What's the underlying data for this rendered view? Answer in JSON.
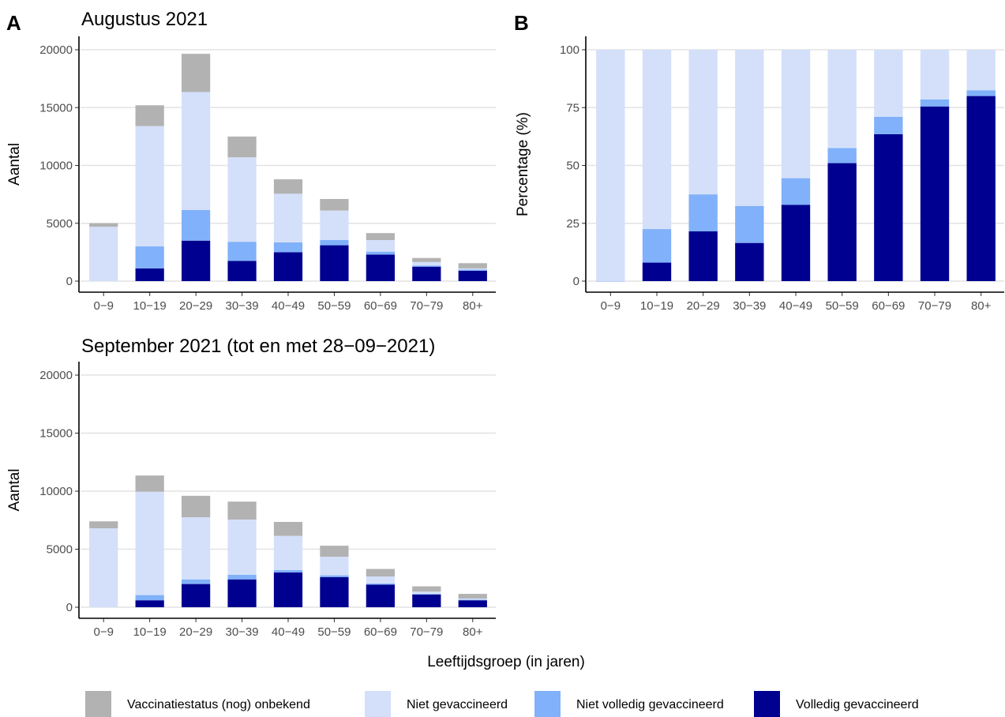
{
  "shared": {
    "xlabel": "Leeftijdsgroep (in jaren)",
    "categories": [
      "0−9",
      "10−19",
      "20−29",
      "30−39",
      "40−49",
      "50−59",
      "60−69",
      "70−79",
      "80+"
    ]
  },
  "legend": [
    {
      "key": "onbekend",
      "label": "Vaccinatiestatus (nog) onbekend",
      "color": "#b2b2b2"
    },
    {
      "key": "niet",
      "label": "Niet gevaccineerd",
      "color": "#d4e0fa"
    },
    {
      "key": "nietvolledig",
      "label": "Niet volledig gevaccineerd",
      "color": "#80b1fa"
    },
    {
      "key": "volledig",
      "label": "Volledig gevaccineerd",
      "color": "#000090"
    }
  ],
  "chart_data": [
    {
      "tag": "A",
      "type": "bar",
      "stacked": true,
      "title": "Augustus 2021",
      "ylabel": "Aantal",
      "ylim": [
        0,
        20000
      ],
      "yticks": [
        "0",
        "5000",
        "10000",
        "15000",
        "20000"
      ],
      "categories": [
        "0−9",
        "10−19",
        "20−29",
        "30−39",
        "40−49",
        "50−59",
        "60−69",
        "70−79",
        "80+"
      ],
      "series": [
        {
          "name": "Volledig gevaccineerd",
          "values": [
            0,
            1100,
            3500,
            1750,
            2500,
            3100,
            2300,
            1250,
            900
          ]
        },
        {
          "name": "Niet volledig gevaccineerd",
          "values": [
            0,
            1900,
            2650,
            1650,
            850,
            450,
            250,
            100,
            100
          ]
        },
        {
          "name": "Niet gevaccineerd",
          "values": [
            4700,
            10400,
            10200,
            7300,
            4200,
            2550,
            1000,
            300,
            100
          ]
        },
        {
          "name": "Vaccinatiestatus (nog) onbekend",
          "values": [
            300,
            1800,
            3300,
            1800,
            1250,
            1000,
            600,
            350,
            450
          ]
        }
      ]
    },
    {
      "tag": "B",
      "type": "bar",
      "stacked": true,
      "title": "",
      "ylabel": "Percentage (%)",
      "ylim": [
        0,
        100
      ],
      "yticks": [
        "0",
        "25",
        "50",
        "75",
        "100"
      ],
      "categories": [
        "0−9",
        "10−19",
        "20−29",
        "30−39",
        "40−49",
        "50−59",
        "60−69",
        "70−79",
        "80+"
      ],
      "series": [
        {
          "name": "Volledig gevaccineerd",
          "values": [
            0,
            8,
            21.5,
            16.5,
            33,
            51,
            63.5,
            75.5,
            80
          ]
        },
        {
          "name": "Niet volledig gevaccineerd",
          "values": [
            0,
            14.5,
            16,
            16,
            11.5,
            6.5,
            7.5,
            3,
            2.5
          ]
        },
        {
          "name": "Niet gevaccineerd",
          "values": [
            100,
            77.5,
            62.5,
            67.5,
            55.5,
            42.5,
            29,
            21.5,
            17.5
          ]
        }
      ]
    },
    {
      "tag": "",
      "type": "bar",
      "stacked": true,
      "title": "September 2021 (tot en met 28−09−2021)",
      "ylabel": "Aantal",
      "ylim": [
        0,
        20000
      ],
      "yticks": [
        "0",
        "5000",
        "10000",
        "15000",
        "20000"
      ],
      "categories": [
        "0−9",
        "10−19",
        "20−29",
        "30−39",
        "40−49",
        "50−59",
        "60−69",
        "70−79",
        "80+"
      ],
      "series": [
        {
          "name": "Volledig gevaccineerd",
          "values": [
            0,
            600,
            2000,
            2400,
            3000,
            2600,
            1950,
            1100,
            600
          ]
        },
        {
          "name": "Niet volledig gevaccineerd",
          "values": [
            0,
            450,
            400,
            400,
            200,
            150,
            100,
            50,
            50
          ]
        },
        {
          "name": "Niet gevaccineerd",
          "values": [
            6800,
            8900,
            5350,
            4750,
            2950,
            1600,
            600,
            200,
            100
          ]
        },
        {
          "name": "Vaccinatiestatus (nog) onbekend",
          "values": [
            600,
            1400,
            1850,
            1550,
            1200,
            950,
            650,
            450,
            400
          ]
        }
      ]
    }
  ]
}
